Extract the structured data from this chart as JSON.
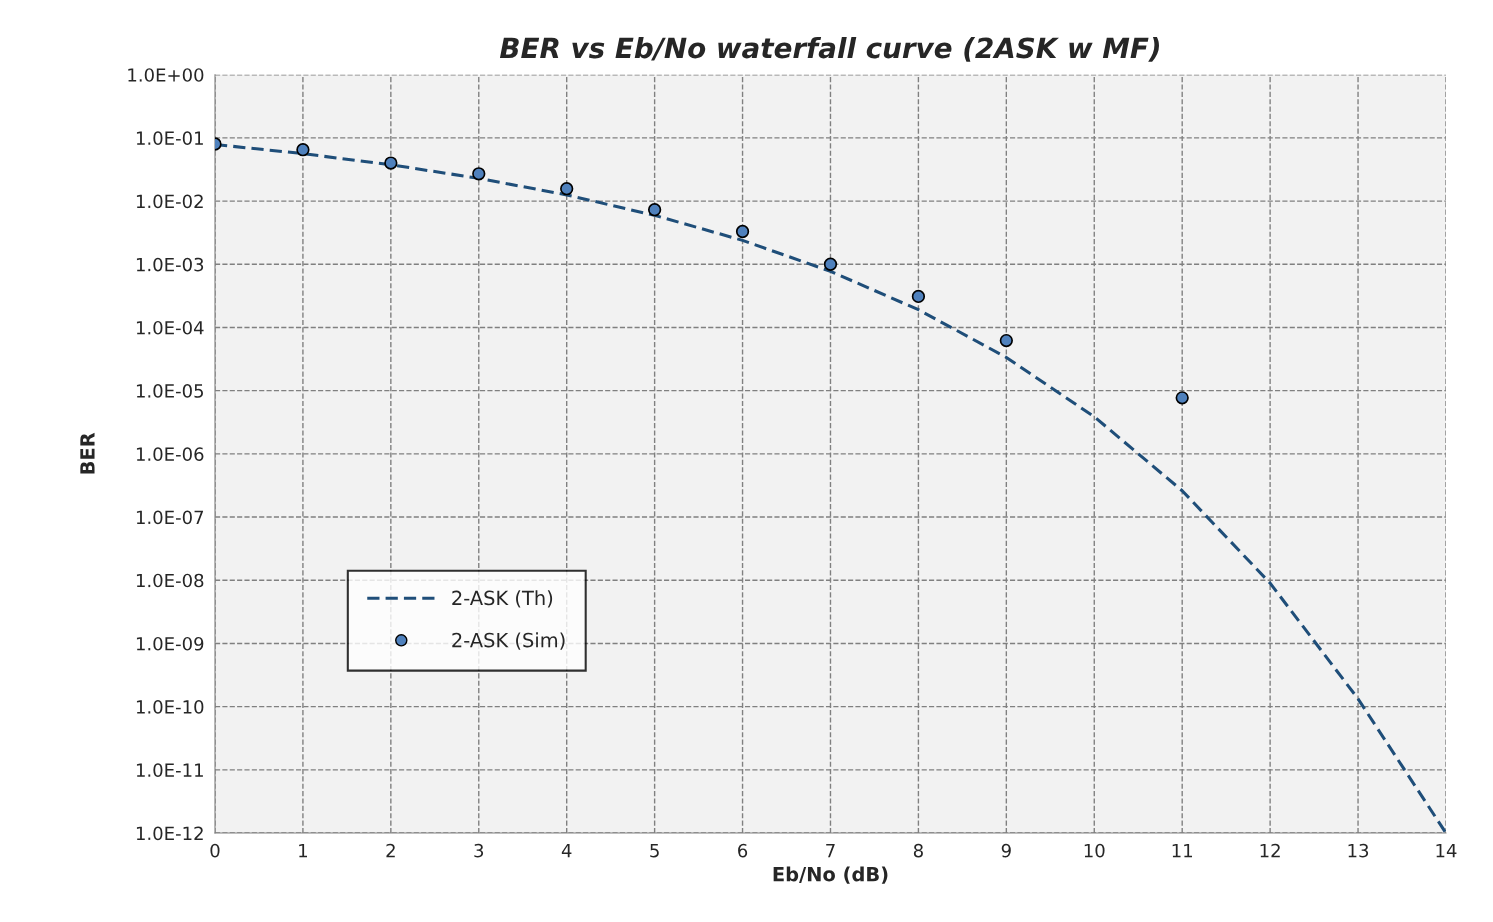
{
  "chart_data": {
    "type": "line",
    "title": "BER vs Eb/No waterfall curve (2ASK w MF)",
    "xlabel": "Eb/No (dB)",
    "ylabel": "BER",
    "log": "y",
    "grid": true,
    "legend": "center left",
    "xlim": [
      0,
      14
    ],
    "xticks": [
      0,
      1,
      2,
      3,
      4,
      5,
      6,
      7,
      8,
      9,
      10,
      11,
      12,
      13,
      14
    ],
    "ylim": [
      1e-12,
      1
    ],
    "yticks": [
      {
        "value": 1e-12,
        "label": "1.0E-12"
      },
      {
        "value": 1e-11,
        "label": "1.0E-11"
      },
      {
        "value": 1e-10,
        "label": "1.0E-10"
      },
      {
        "value": 1e-09,
        "label": "1.0E-09"
      },
      {
        "value": 1e-08,
        "label": "1.0E-08"
      },
      {
        "value": 1e-07,
        "label": "1.0E-07"
      },
      {
        "value": 1e-06,
        "label": "1.0E-06"
      },
      {
        "value": 1e-05,
        "label": "1.0E-05"
      },
      {
        "value": 0.0001,
        "label": "1.0E-04"
      },
      {
        "value": 0.001,
        "label": "1.0E-03"
      },
      {
        "value": 0.01,
        "label": "1.0E-02"
      },
      {
        "value": 0.1,
        "label": "1.0E-01"
      },
      {
        "value": 1,
        "label": "1.0E+00"
      }
    ],
    "series": [
      {
        "name": "2-ASK (Th)",
        "line_style": "dashed",
        "marker": "none",
        "color": "#1f4e79",
        "x": [
          0,
          1,
          2,
          3,
          4,
          5,
          6,
          7,
          8,
          9,
          10,
          11,
          12,
          13,
          14
        ],
        "values": [
          0.0786,
          0.0563,
          0.0375,
          0.0229,
          0.0125,
          0.00595,
          0.00239,
          0.000773,
          0.000191,
          3.36e-05,
          3.87e-06,
          2.61e-07,
          9e-09,
          1.33e-10,
          1e-12
        ]
      },
      {
        "name": "2-ASK (Sim)",
        "type": "scatter",
        "marker": "circle",
        "color": "#4f81bd",
        "x": [
          0,
          1,
          2,
          3,
          4,
          5,
          6,
          7,
          8,
          9,
          11
        ],
        "values": [
          0.08,
          0.065,
          0.04,
          0.027,
          0.0157,
          0.0073,
          0.0033,
          0.001,
          0.00031,
          6.2e-05,
          7.7e-06
        ]
      }
    ]
  }
}
